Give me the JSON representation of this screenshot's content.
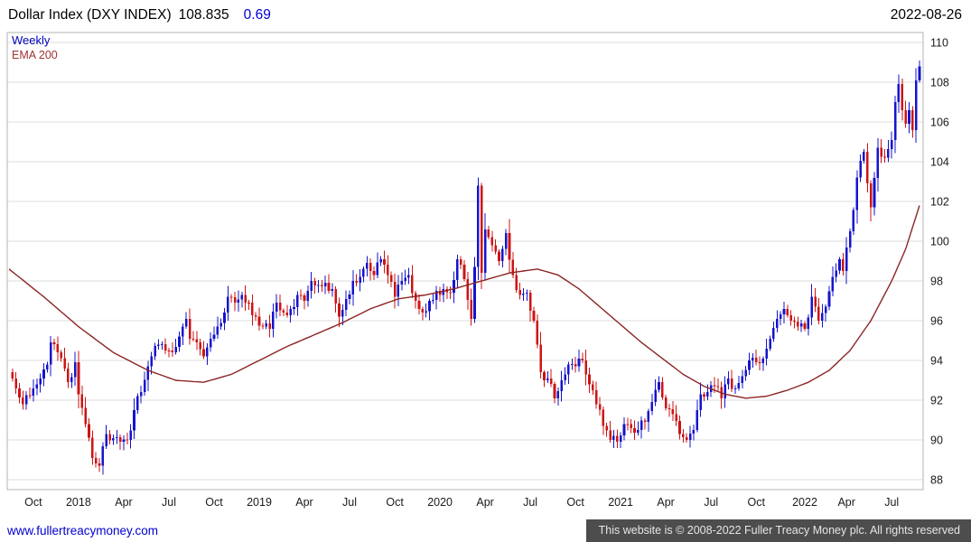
{
  "header": {
    "instrument": "Dollar Index (DXY INDEX)",
    "last_price": "108.835",
    "change": "0.69",
    "date": "2022-08-26"
  },
  "legend": {
    "timeframe": "Weekly",
    "indicator": "EMA 200"
  },
  "footer": {
    "site_link": "www.fullertreacymoney.com",
    "copyright": "This website is © 2008-2022 Fuller Treacy Money plc. All rights reserved"
  },
  "colors": {
    "up_candle": "#1414cc",
    "down_candle": "#cc1414",
    "ema_line": "#8b2424",
    "change_text": "#0000d0",
    "timeframe_text": "#0000b8",
    "indicator_text": "#a03434",
    "link": "#0000cc",
    "footer_bar": "#4d4d4d",
    "grid": "#dcdcdc"
  },
  "chart_data": {
    "type": "candlestick",
    "title": "Dollar Index (DXY INDEX)",
    "timeframe": "Weekly",
    "overlay": {
      "name": "EMA 200",
      "color": "#8b2424"
    },
    "ylim": [
      87.5,
      110.5
    ],
    "y_ticks": [
      88,
      90,
      92,
      94,
      96,
      98,
      100,
      102,
      104,
      106,
      108,
      110
    ],
    "x_ticks": [
      {
        "label": "Oct",
        "week": 7
      },
      {
        "label": "2018",
        "week": 20
      },
      {
        "label": "Apr",
        "week": 33
      },
      {
        "label": "Jul",
        "week": 46
      },
      {
        "label": "Oct",
        "week": 59
      },
      {
        "label": "2019",
        "week": 72
      },
      {
        "label": "Apr",
        "week": 85
      },
      {
        "label": "Jul",
        "week": 98
      },
      {
        "label": "Oct",
        "week": 111
      },
      {
        "label": "2020",
        "week": 124
      },
      {
        "label": "Apr",
        "week": 137
      },
      {
        "label": "Jul",
        "week": 150
      },
      {
        "label": "Oct",
        "week": 163
      },
      {
        "label": "2021",
        "week": 176
      },
      {
        "label": "Apr",
        "week": 189
      },
      {
        "label": "Jul",
        "week": 202
      },
      {
        "label": "Oct",
        "week": 215
      },
      {
        "label": "2022",
        "week": 229
      },
      {
        "label": "Apr",
        "week": 241
      },
      {
        "label": "Jul",
        "week": 254
      }
    ],
    "weeks_total": 262,
    "up_color": "#1414cc",
    "down_color": "#cc1414",
    "grid": "horizontal",
    "legend_position": "top-left",
    "close_anchors": [
      [
        0,
        93.4
      ],
      [
        2,
        92.6
      ],
      [
        4,
        91.8
      ],
      [
        7,
        92.6
      ],
      [
        9,
        93.1
      ],
      [
        11,
        93.8
      ],
      [
        12,
        94.9
      ],
      [
        14,
        94.4
      ],
      [
        16,
        93.6
      ],
      [
        17,
        92.9
      ],
      [
        19,
        93.9
      ],
      [
        20,
        92.3
      ],
      [
        22,
        90.8
      ],
      [
        24,
        89.1
      ],
      [
        26,
        88.7
      ],
      [
        28,
        90.3
      ],
      [
        30,
        90.1
      ],
      [
        32,
        89.9
      ],
      [
        34,
        90.0
      ],
      [
        36,
        91.5
      ],
      [
        38,
        92.4
      ],
      [
        40,
        93.7
      ],
      [
        41,
        94.2
      ],
      [
        43,
        94.8
      ],
      [
        45,
        94.5
      ],
      [
        47,
        94.4
      ],
      [
        49,
        95.2
      ],
      [
        51,
        96.1
      ],
      [
        52,
        95.1
      ],
      [
        54,
        94.9
      ],
      [
        56,
        94.2
      ],
      [
        58,
        95.1
      ],
      [
        60,
        95.7
      ],
      [
        62,
        96.4
      ],
      [
        63,
        97.2
      ],
      [
        65,
        96.9
      ],
      [
        67,
        97.3
      ],
      [
        69,
        96.9
      ],
      [
        71,
        96.2
      ],
      [
        73,
        95.7
      ],
      [
        75,
        95.6
      ],
      [
        77,
        96.9
      ],
      [
        79,
        96.4
      ],
      [
        81,
        96.6
      ],
      [
        83,
        97.3
      ],
      [
        85,
        97.0
      ],
      [
        87,
        98.0
      ],
      [
        89,
        97.8
      ],
      [
        91,
        97.9
      ],
      [
        93,
        97.6
      ],
      [
        95,
        96.2
      ],
      [
        97,
        97.1
      ],
      [
        99,
        98.0
      ],
      [
        101,
        98.2
      ],
      [
        103,
        98.9
      ],
      [
        105,
        98.3
      ],
      [
        107,
        99.1
      ],
      [
        109,
        98.3
      ],
      [
        111,
        97.2
      ],
      [
        113,
        98.0
      ],
      [
        115,
        98.3
      ],
      [
        117,
        97.0
      ],
      [
        119,
        96.4
      ],
      [
        121,
        97.0
      ],
      [
        123,
        97.5
      ],
      [
        125,
        97.6
      ],
      [
        127,
        97.4
      ],
      [
        129,
        99.1
      ],
      [
        131,
        98.1
      ],
      [
        133,
        96.1
      ],
      [
        134,
        98.7
      ],
      [
        135,
        102.8
      ],
      [
        136,
        98.4
      ],
      [
        137,
        100.6
      ],
      [
        139,
        99.8
      ],
      [
        141,
        99.0
      ],
      [
        143,
        100.4
      ],
      [
        145,
        98.3
      ],
      [
        147,
        97.3
      ],
      [
        149,
        97.4
      ],
      [
        151,
        96.0
      ],
      [
        153,
        93.4
      ],
      [
        155,
        93.1
      ],
      [
        157,
        92.1
      ],
      [
        159,
        93.0
      ],
      [
        161,
        93.8
      ],
      [
        163,
        93.7
      ],
      [
        165,
        94.0
      ],
      [
        167,
        92.8
      ],
      [
        169,
        91.8
      ],
      [
        171,
        90.7
      ],
      [
        173,
        90.0
      ],
      [
        175,
        89.9
      ],
      [
        177,
        90.8
      ],
      [
        179,
        90.6
      ],
      [
        181,
        90.5
      ],
      [
        183,
        90.9
      ],
      [
        185,
        91.9
      ],
      [
        187,
        92.9
      ],
      [
        189,
        91.6
      ],
      [
        191,
        91.3
      ],
      [
        193,
        90.3
      ],
      [
        195,
        90.0
      ],
      [
        197,
        90.5
      ],
      [
        199,
        92.3
      ],
      [
        201,
        92.4
      ],
      [
        203,
        92.7
      ],
      [
        205,
        92.1
      ],
      [
        207,
        93.1
      ],
      [
        209,
        92.6
      ],
      [
        211,
        93.2
      ],
      [
        213,
        94.0
      ],
      [
        215,
        93.9
      ],
      [
        217,
        94.1
      ],
      [
        219,
        95.1
      ],
      [
        221,
        96.1
      ],
      [
        223,
        96.6
      ],
      [
        225,
        96.0
      ],
      [
        227,
        95.7
      ],
      [
        229,
        95.6
      ],
      [
        231,
        97.2
      ],
      [
        233,
        96.0
      ],
      [
        235,
        96.7
      ],
      [
        237,
        98.2
      ],
      [
        239,
        99.1
      ],
      [
        240,
        98.5
      ],
      [
        242,
        100.5
      ],
      [
        244,
        103.2
      ],
      [
        246,
        104.5
      ],
      [
        248,
        101.7
      ],
      [
        250,
        104.7
      ],
      [
        252,
        104.2
      ],
      [
        254,
        105.1
      ],
      [
        255,
        107.0
      ],
      [
        256,
        107.9
      ],
      [
        257,
        106.6
      ],
      [
        258,
        105.9
      ],
      [
        259,
        106.6
      ],
      [
        260,
        105.6
      ],
      [
        261,
        108.1
      ],
      [
        262,
        108.8
      ]
    ],
    "ema_anchors": [
      [
        0,
        98.6
      ],
      [
        10,
        97.2
      ],
      [
        20,
        95.7
      ],
      [
        30,
        94.4
      ],
      [
        40,
        93.5
      ],
      [
        48,
        93.0
      ],
      [
        56,
        92.9
      ],
      [
        64,
        93.3
      ],
      [
        72,
        94.0
      ],
      [
        80,
        94.7
      ],
      [
        88,
        95.3
      ],
      [
        96,
        95.9
      ],
      [
        104,
        96.6
      ],
      [
        112,
        97.1
      ],
      [
        120,
        97.3
      ],
      [
        128,
        97.6
      ],
      [
        136,
        98.0
      ],
      [
        144,
        98.4
      ],
      [
        152,
        98.6
      ],
      [
        158,
        98.3
      ],
      [
        164,
        97.6
      ],
      [
        170,
        96.7
      ],
      [
        176,
        95.8
      ],
      [
        182,
        94.9
      ],
      [
        188,
        94.1
      ],
      [
        194,
        93.3
      ],
      [
        200,
        92.7
      ],
      [
        206,
        92.3
      ],
      [
        212,
        92.1
      ],
      [
        218,
        92.2
      ],
      [
        224,
        92.5
      ],
      [
        230,
        92.9
      ],
      [
        236,
        93.5
      ],
      [
        242,
        94.5
      ],
      [
        248,
        96.0
      ],
      [
        254,
        98.0
      ],
      [
        258,
        99.6
      ],
      [
        262,
        101.8
      ]
    ],
    "render_hints": {
      "noise": 0.28,
      "seed": 11,
      "body_width": 2.6
    }
  }
}
